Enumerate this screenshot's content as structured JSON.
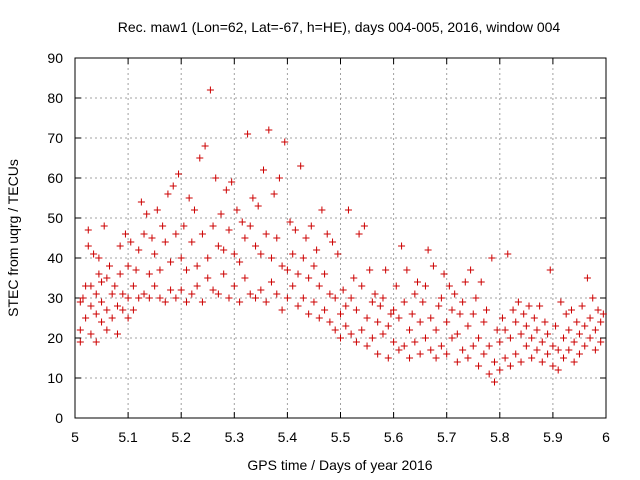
{
  "chart_data": {
    "type": "scatter",
    "title": "Rec. maw1 (Lon=62, Lat=-67, h=HE), days 004-005, 2016, window 004",
    "xlabel": "GPS time / Days of year 2016",
    "ylabel": "STEC from uqrg / TECUs",
    "xlim": [
      5,
      6
    ],
    "ylim": [
      0,
      90
    ],
    "xticks": [
      5,
      5.1,
      5.2,
      5.3,
      5.4,
      5.5,
      5.6,
      5.7,
      5.8,
      5.9,
      6
    ],
    "xtick_labels": [
      "5",
      "5.1",
      "5.2",
      "5.3",
      "5.4",
      "5.5",
      "5.6",
      "5.7",
      "5.8",
      "5.9",
      "6"
    ],
    "yticks": [
      0,
      10,
      20,
      30,
      40,
      50,
      60,
      70,
      80,
      90
    ],
    "ytick_labels": [
      "0",
      "10",
      "20",
      "30",
      "40",
      "50",
      "60",
      "70",
      "80",
      "90"
    ],
    "grid": true,
    "marker": "+",
    "color": "#cc0000",
    "series": [
      {
        "name": "STEC",
        "points": [
          [
            5.01,
            29
          ],
          [
            5.01,
            22
          ],
          [
            5.01,
            19
          ],
          [
            5.015,
            30
          ],
          [
            5.02,
            25
          ],
          [
            5.02,
            33
          ],
          [
            5.025,
            43
          ],
          [
            5.025,
            47
          ],
          [
            5.03,
            21
          ],
          [
            5.03,
            28
          ],
          [
            5.03,
            33
          ],
          [
            5.035,
            41
          ],
          [
            5.04,
            19
          ],
          [
            5.04,
            26
          ],
          [
            5.04,
            31
          ],
          [
            5.045,
            36
          ],
          [
            5.045,
            40
          ],
          [
            5.05,
            24
          ],
          [
            5.05,
            29
          ],
          [
            5.05,
            34
          ],
          [
            5.055,
            48
          ],
          [
            5.06,
            22
          ],
          [
            5.06,
            27
          ],
          [
            5.06,
            35
          ],
          [
            5.065,
            38
          ],
          [
            5.07,
            31
          ],
          [
            5.07,
            25
          ],
          [
            5.075,
            33
          ],
          [
            5.08,
            21
          ],
          [
            5.08,
            28
          ],
          [
            5.085,
            36
          ],
          [
            5.085,
            43
          ],
          [
            5.09,
            27
          ],
          [
            5.09,
            31
          ],
          [
            5.095,
            46
          ],
          [
            5.1,
            25
          ],
          [
            5.1,
            30
          ],
          [
            5.1,
            38
          ],
          [
            5.105,
            44
          ],
          [
            5.11,
            27
          ],
          [
            5.11,
            33
          ],
          [
            5.115,
            37
          ],
          [
            5.12,
            30
          ],
          [
            5.12,
            42
          ],
          [
            5.125,
            54
          ],
          [
            5.13,
            31
          ],
          [
            5.13,
            46
          ],
          [
            5.135,
            51
          ],
          [
            5.14,
            30
          ],
          [
            5.14,
            36
          ],
          [
            5.145,
            45
          ],
          [
            5.15,
            33
          ],
          [
            5.15,
            41
          ],
          [
            5.155,
            52
          ],
          [
            5.16,
            30
          ],
          [
            5.16,
            37
          ],
          [
            5.165,
            48
          ],
          [
            5.17,
            29
          ],
          [
            5.17,
            44
          ],
          [
            5.175,
            56
          ],
          [
            5.18,
            32
          ],
          [
            5.18,
            39
          ],
          [
            5.185,
            58
          ],
          [
            5.19,
            30
          ],
          [
            5.19,
            46
          ],
          [
            5.195,
            61
          ],
          [
            5.2,
            32
          ],
          [
            5.2,
            40
          ],
          [
            5.205,
            48
          ],
          [
            5.21,
            29
          ],
          [
            5.21,
            37
          ],
          [
            5.215,
            55
          ],
          [
            5.22,
            31
          ],
          [
            5.22,
            44
          ],
          [
            5.225,
            52
          ],
          [
            5.23,
            33
          ],
          [
            5.23,
            38
          ],
          [
            5.235,
            65
          ],
          [
            5.24,
            29
          ],
          [
            5.24,
            46
          ],
          [
            5.245,
            68
          ],
          [
            5.25,
            35
          ],
          [
            5.25,
            40
          ],
          [
            5.255,
            82
          ],
          [
            5.26,
            32
          ],
          [
            5.26,
            48
          ],
          [
            5.265,
            60
          ],
          [
            5.27,
            31
          ],
          [
            5.27,
            43
          ],
          [
            5.275,
            51
          ],
          [
            5.28,
            36
          ],
          [
            5.28,
            42
          ],
          [
            5.285,
            57
          ],
          [
            5.29,
            30
          ],
          [
            5.29,
            47
          ],
          [
            5.295,
            59
          ],
          [
            5.3,
            33
          ],
          [
            5.3,
            41
          ],
          [
            5.305,
            52
          ],
          [
            5.31,
            29
          ],
          [
            5.31,
            39
          ],
          [
            5.315,
            49
          ],
          [
            5.32,
            35
          ],
          [
            5.32,
            45
          ],
          [
            5.325,
            71
          ],
          [
            5.33,
            31
          ],
          [
            5.33,
            48
          ],
          [
            5.335,
            55
          ],
          [
            5.34,
            30
          ],
          [
            5.34,
            43
          ],
          [
            5.345,
            53
          ],
          [
            5.35,
            32
          ],
          [
            5.35,
            41
          ],
          [
            5.355,
            62
          ],
          [
            5.36,
            29
          ],
          [
            5.36,
            46
          ],
          [
            5.365,
            72
          ],
          [
            5.37,
            34
          ],
          [
            5.37,
            40
          ],
          [
            5.375,
            56
          ],
          [
            5.38,
            31
          ],
          [
            5.38,
            45
          ],
          [
            5.385,
            60
          ],
          [
            5.39,
            27
          ],
          [
            5.39,
            38
          ],
          [
            5.395,
            69
          ],
          [
            5.4,
            30
          ],
          [
            5.4,
            37
          ],
          [
            5.405,
            49
          ],
          [
            5.41,
            33
          ],
          [
            5.41,
            41
          ],
          [
            5.415,
            47
          ],
          [
            5.42,
            28
          ],
          [
            5.42,
            36
          ],
          [
            5.425,
            63
          ],
          [
            5.43,
            30
          ],
          [
            5.43,
            40
          ],
          [
            5.435,
            45
          ],
          [
            5.44,
            26
          ],
          [
            5.44,
            35
          ],
          [
            5.445,
            48
          ],
          [
            5.45,
            29
          ],
          [
            5.45,
            38
          ],
          [
            5.455,
            42
          ],
          [
            5.46,
            25
          ],
          [
            5.46,
            33
          ],
          [
            5.465,
            52
          ],
          [
            5.47,
            27
          ],
          [
            5.47,
            36
          ],
          [
            5.475,
            46
          ],
          [
            5.48,
            24
          ],
          [
            5.48,
            31
          ],
          [
            5.485,
            44
          ],
          [
            5.49,
            22
          ],
          [
            5.49,
            30
          ],
          [
            5.495,
            41
          ],
          [
            5.5,
            20
          ],
          [
            5.5,
            26
          ],
          [
            5.505,
            32
          ],
          [
            5.51,
            23
          ],
          [
            5.51,
            28
          ],
          [
            5.515,
            52
          ],
          [
            5.52,
            21
          ],
          [
            5.52,
            30
          ],
          [
            5.525,
            35
          ],
          [
            5.53,
            19
          ],
          [
            5.53,
            27
          ],
          [
            5.535,
            46
          ],
          [
            5.54,
            22
          ],
          [
            5.54,
            33
          ],
          [
            5.545,
            48
          ],
          [
            5.55,
            18
          ],
          [
            5.55,
            25
          ],
          [
            5.555,
            37
          ],
          [
            5.56,
            20
          ],
          [
            5.56,
            29
          ],
          [
            5.565,
            31
          ],
          [
            5.57,
            16
          ],
          [
            5.57,
            24
          ],
          [
            5.575,
            28
          ],
          [
            5.58,
            21
          ],
          [
            5.58,
            30
          ],
          [
            5.585,
            37
          ],
          [
            5.59,
            15
          ],
          [
            5.59,
            23
          ],
          [
            5.595,
            26
          ],
          [
            5.6,
            19
          ],
          [
            5.6,
            27
          ],
          [
            5.605,
            33
          ],
          [
            5.61,
            17
          ],
          [
            5.61,
            25
          ],
          [
            5.615,
            43
          ],
          [
            5.62,
            18
          ],
          [
            5.62,
            29
          ],
          [
            5.625,
            37
          ],
          [
            5.63,
            15
          ],
          [
            5.63,
            22
          ],
          [
            5.635,
            26
          ],
          [
            5.64,
            19
          ],
          [
            5.64,
            31
          ],
          [
            5.645,
            34
          ],
          [
            5.65,
            16
          ],
          [
            5.65,
            24
          ],
          [
            5.655,
            29
          ],
          [
            5.66,
            20
          ],
          [
            5.66,
            33
          ],
          [
            5.665,
            42
          ],
          [
            5.67,
            17
          ],
          [
            5.67,
            25
          ],
          [
            5.675,
            38
          ],
          [
            5.68,
            15
          ],
          [
            5.68,
            22
          ],
          [
            5.685,
            28
          ],
          [
            5.69,
            18
          ],
          [
            5.69,
            30
          ],
          [
            5.695,
            36
          ],
          [
            5.7,
            16
          ],
          [
            5.7,
            24
          ],
          [
            5.705,
            33
          ],
          [
            5.71,
            20
          ],
          [
            5.71,
            27
          ],
          [
            5.715,
            31
          ],
          [
            5.72,
            14
          ],
          [
            5.72,
            21
          ],
          [
            5.725,
            26
          ],
          [
            5.73,
            17
          ],
          [
            5.73,
            29
          ],
          [
            5.735,
            34
          ],
          [
            5.74,
            15
          ],
          [
            5.74,
            23
          ],
          [
            5.745,
            37
          ],
          [
            5.75,
            18
          ],
          [
            5.75,
            26
          ],
          [
            5.755,
            30
          ],
          [
            5.76,
            13
          ],
          [
            5.76,
            20
          ],
          [
            5.765,
            34
          ],
          [
            5.77,
            16
          ],
          [
            5.77,
            24
          ],
          [
            5.775,
            27
          ],
          [
            5.78,
            11
          ],
          [
            5.78,
            18
          ],
          [
            5.785,
            40
          ],
          [
            5.79,
            9
          ],
          [
            5.79,
            14
          ],
          [
            5.795,
            22
          ],
          [
            5.8,
            12
          ],
          [
            5.8,
            19
          ],
          [
            5.805,
            25
          ],
          [
            5.81,
            15
          ],
          [
            5.81,
            22
          ],
          [
            5.815,
            41
          ],
          [
            5.82,
            13
          ],
          [
            5.82,
            20
          ],
          [
            5.825,
            27
          ],
          [
            5.83,
            16
          ],
          [
            5.83,
            24
          ],
          [
            5.835,
            29
          ],
          [
            5.84,
            14
          ],
          [
            5.84,
            21
          ],
          [
            5.845,
            26
          ],
          [
            5.85,
            18
          ],
          [
            5.85,
            23
          ],
          [
            5.855,
            28
          ],
          [
            5.86,
            15
          ],
          [
            5.86,
            20
          ],
          [
            5.865,
            25
          ],
          [
            5.87,
            17
          ],
          [
            5.87,
            22
          ],
          [
            5.875,
            28
          ],
          [
            5.88,
            14
          ],
          [
            5.88,
            19
          ],
          [
            5.885,
            24
          ],
          [
            5.89,
            16
          ],
          [
            5.89,
            21
          ],
          [
            5.895,
            37
          ],
          [
            5.9,
            13
          ],
          [
            5.9,
            18
          ],
          [
            5.905,
            23
          ],
          [
            5.91,
            12
          ],
          [
            5.91,
            17
          ],
          [
            5.915,
            29
          ],
          [
            5.92,
            15
          ],
          [
            5.92,
            20
          ],
          [
            5.925,
            26
          ],
          [
            5.93,
            17
          ],
          [
            5.93,
            22
          ],
          [
            5.935,
            27
          ],
          [
            5.94,
            14
          ],
          [
            5.94,
            19
          ],
          [
            5.945,
            24
          ],
          [
            5.95,
            16
          ],
          [
            5.95,
            21
          ],
          [
            5.955,
            28
          ],
          [
            5.96,
            18
          ],
          [
            5.96,
            23
          ],
          [
            5.965,
            35
          ],
          [
            5.97,
            20
          ],
          [
            5.97,
            25
          ],
          [
            5.975,
            30
          ],
          [
            5.98,
            17
          ],
          [
            5.98,
            22
          ],
          [
            5.985,
            27
          ],
          [
            5.99,
            19
          ],
          [
            5.99,
            24
          ],
          [
            5.995,
            26
          ]
        ]
      }
    ]
  }
}
